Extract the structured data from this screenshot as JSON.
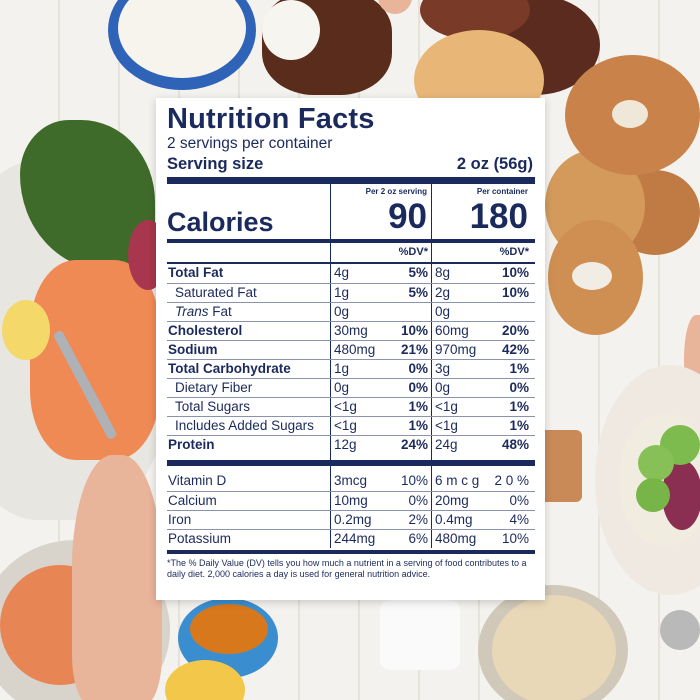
{
  "label": {
    "title": "Nutrition Facts",
    "servings_per_container": "2 servings per container",
    "serving_size_label": "Serving size",
    "serving_size_value": "2 oz (56g)",
    "calories_label": "Calories",
    "col1_header": "Per 2 oz serving",
    "col2_header": "Per container",
    "calories_per_serving": "90",
    "calories_per_container": "180",
    "dv_header": "%DV*",
    "nutrients": [
      {
        "name": "Total Fat",
        "amt1": "4g",
        "dv1": "5%",
        "amt2": "8g",
        "dv2": "10%"
      },
      {
        "name": "Saturated Fat",
        "amt1": "1g",
        "dv1": "5%",
        "amt2": "2g",
        "dv2": "10%"
      },
      {
        "name_italic": "Trans",
        "name_rest": " Fat",
        "amt1": "0g",
        "dv1": "",
        "amt2": "0g",
        "dv2": ""
      },
      {
        "name": "Cholesterol",
        "amt1": "30mg",
        "dv1": "10%",
        "amt2": "60mg",
        "dv2": "20%"
      },
      {
        "name": "Sodium",
        "amt1": "480mg",
        "dv1": "21%",
        "amt2": "970mg",
        "dv2": "42%"
      },
      {
        "name": "Total Carbohydrate",
        "amt1": "1g",
        "dv1": "0%",
        "amt2": "3g",
        "dv2": "1%"
      },
      {
        "name": "Dietary Fiber",
        "amt1": "0g",
        "dv1": "0%",
        "amt2": "0g",
        "dv2": "0%"
      },
      {
        "name": "Total Sugars",
        "amt1": "<1g",
        "dv1": "1%",
        "amt2": "<1g",
        "dv2": "1%"
      },
      {
        "name": "Includes Added Sugars",
        "amt1": "<1g",
        "dv1": "1%",
        "amt2": "<1g",
        "dv2": "1%"
      },
      {
        "name": "Protein",
        "amt1": "12g",
        "dv1": "24%",
        "amt2": "24g",
        "dv2": "48%"
      }
    ],
    "vitamins": [
      {
        "name": "Vitamin D",
        "amt1": "3mcg",
        "dv1": "10%",
        "amt2": "6 m c g",
        "dv2": "2 0 %"
      },
      {
        "name": "Calcium",
        "amt1": "10mg",
        "dv1": "0%",
        "amt2": "20mg",
        "dv2": "0%"
      },
      {
        "name": "Iron",
        "amt1": "0.2mg",
        "dv1": "2%",
        "amt2": "0.4mg",
        "dv2": "4%"
      },
      {
        "name": "Potassium",
        "amt1": "244mg",
        "dv1": "6%",
        "amt2": "480mg",
        "dv2": "10%"
      }
    ],
    "footnote": "*The % Daily Value (DV) tells you how much a nutrient in a serving of food contributes to a daily diet. 2,000 calories a day is used for general nutrition advice."
  },
  "colors": {
    "label_text": "#1b2a5c",
    "label_bg": "#ffffff"
  }
}
